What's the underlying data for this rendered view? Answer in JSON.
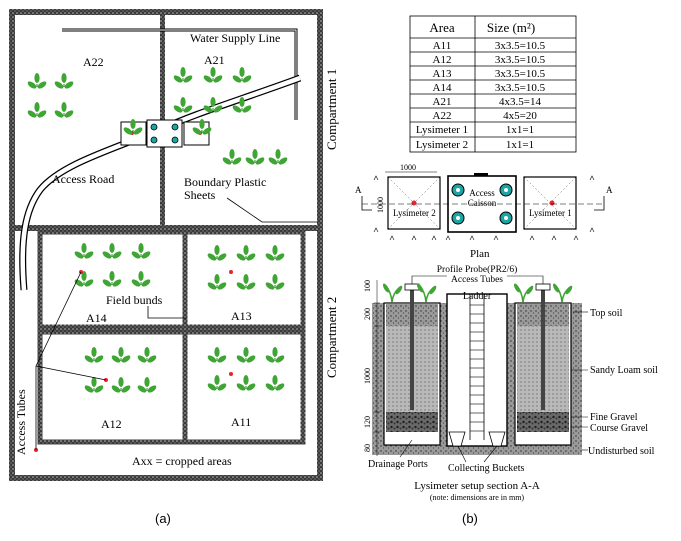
{
  "panel_a": {
    "caption": "(a)",
    "areas": {
      "A22": "A22",
      "A21": "A21",
      "A14": "A14",
      "A13": "A13",
      "A12": "A12",
      "A11": "A11"
    },
    "labels": {
      "water_supply_line": "Water Supply Line",
      "compartment_1": "Compartment 1",
      "compartment_2": "Compartment 2",
      "access_road": "Access Road",
      "boundary_plastic_1": "Boundary Plastic",
      "boundary_plastic_2": "Sheets",
      "field_bunds": "Field bunds",
      "access_tubes": "Access Tubes",
      "legend": "Axx = cropped areas"
    },
    "colors": {
      "plant": "#3fa535",
      "probe": "#e8232a",
      "wall_fill": "#5a5a5a",
      "caisson": "#1aa6a6"
    }
  },
  "panel_b": {
    "caption": "(b)",
    "table": {
      "headers": [
        "Area",
        "Size (m²)"
      ],
      "rows": [
        [
          "A11",
          "3x3.5=10.5"
        ],
        [
          "A12",
          "3x3.5=10.5"
        ],
        [
          "A13",
          "3x3.5=10.5"
        ],
        [
          "A14",
          "3x3.5=10.5"
        ],
        [
          "A21",
          "4x3.5=14"
        ],
        [
          "A22",
          "4x5=20"
        ],
        [
          "Lysimeter 1",
          "1x1=1"
        ],
        [
          "Lysimeter 2",
          "1x1=1"
        ]
      ]
    },
    "plan": {
      "dim_top": "1000",
      "dim_side": "1000",
      "lys2": "Lysimeter 2",
      "access": "Access",
      "caisson": "Caisson",
      "lys1": "Lysimeter 1",
      "section_a_left": "A",
      "section_a_right": "A",
      "title": "Plan"
    },
    "section": {
      "probe_label": "Profile Probe(PR2/6)",
      "tubes_label": "Access Tubes",
      "ladder": "Ladder",
      "top_soil": "Top soil",
      "sandy_loam": "Sandy Loam soil",
      "fine_gravel": "Fine Gravel",
      "course_gravel": "Course Gravel",
      "undisturbed": "Undisturbed soil",
      "drainage": "Drainage Ports",
      "buckets": "Collecting Buckets",
      "dims": [
        "100",
        "200",
        "1000",
        "120",
        "80"
      ],
      "title": "Lysimeter setup section A-A",
      "note": "(note: dimensions are in mm)"
    }
  }
}
